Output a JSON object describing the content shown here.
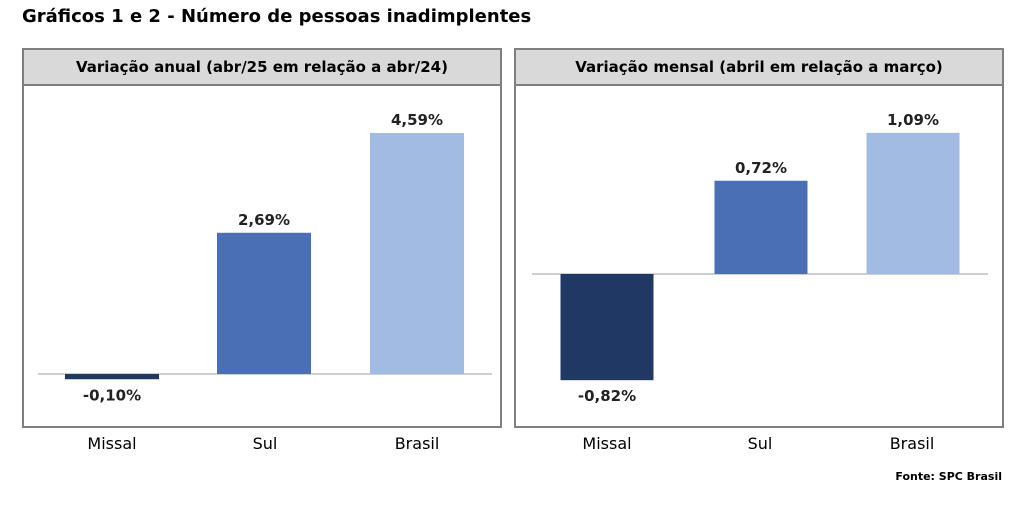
{
  "title": "Gráficos 1 e 2 - Número de pessoas inadimplentes",
  "source": "Fonte: SPC Brasil",
  "chart_data": [
    {
      "type": "bar",
      "title": "Variação anual (abr/25 em relação a abr/24)",
      "categories": [
        "Missal",
        "Sul",
        "Brasil"
      ],
      "values": [
        -0.1,
        2.69,
        4.59
      ],
      "value_labels": [
        "-0,10%",
        "2,69%",
        "4,59%"
      ],
      "colors": [
        "#1f3864",
        "#4a6fb5",
        "#a2bbe2"
      ],
      "xlabel": "",
      "ylabel": "",
      "grid": false,
      "legend": "none"
    },
    {
      "type": "bar",
      "title": "Variação mensal (abril em relação a março)",
      "categories": [
        "Missal",
        "Sul",
        "Brasil"
      ],
      "values": [
        -0.82,
        0.72,
        1.09
      ],
      "value_labels": [
        "-0,82%",
        "0,72%",
        "1,09%"
      ],
      "colors": [
        "#1f3864",
        "#4a6fb5",
        "#a2bbe2"
      ],
      "xlabel": "",
      "ylabel": "",
      "grid": false,
      "legend": "none"
    }
  ]
}
